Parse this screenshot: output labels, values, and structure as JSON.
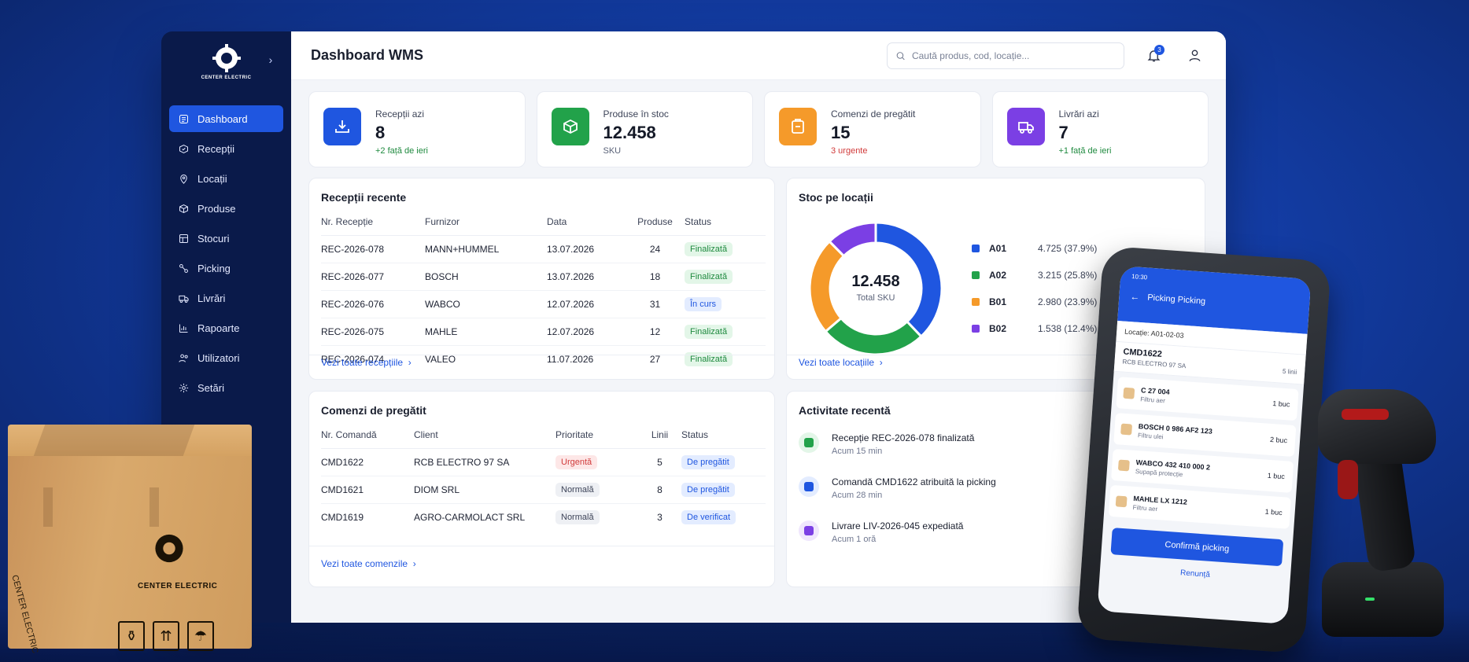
{
  "app": {
    "logo_text": "CENTER ELECTRIC",
    "title": "Dashboard WMS",
    "search_placeholder": "Caută produs, cod, locație...",
    "notifications_count": "3"
  },
  "sidebar": {
    "items": [
      {
        "label": "Dashboard",
        "icon": "dashboard-icon",
        "active": true
      },
      {
        "label": "Recepții",
        "icon": "reception-icon"
      },
      {
        "label": "Locații",
        "icon": "location-icon"
      },
      {
        "label": "Produse",
        "icon": "box-icon"
      },
      {
        "label": "Stocuri",
        "icon": "stock-icon"
      },
      {
        "label": "Picking",
        "icon": "picking-icon"
      },
      {
        "label": "Livrări",
        "icon": "truck-icon"
      },
      {
        "label": "Rapoarte",
        "icon": "chart-icon"
      },
      {
        "label": "Utilizatori",
        "icon": "users-icon"
      },
      {
        "label": "Setări",
        "icon": "gear-icon"
      }
    ]
  },
  "kpis": [
    {
      "label": "Recepții azi",
      "value": "8",
      "sub": "+2 față de ieri",
      "color": "#1f56e0",
      "sub_color": "#1f8a3f"
    },
    {
      "label": "Produse în stoc",
      "value": "12.458",
      "sub": "SKU",
      "color": "#22a24a",
      "sub_color": "#5a6278"
    },
    {
      "label": "Comenzi de pregătit",
      "value": "15",
      "sub": "3 urgente",
      "color": "#f59a2a",
      "sub_color": "#d13b3b"
    },
    {
      "label": "Livrări azi",
      "value": "7",
      "sub": "+1 față de ieri",
      "color": "#7b3fe4",
      "sub_color": "#1f8a3f"
    }
  ],
  "receptions": {
    "title": "Recepții recente",
    "columns": [
      "Nr. Recepție",
      "Furnizor",
      "Data",
      "Produse",
      "Status"
    ],
    "rows": [
      [
        "REC-2026-078",
        "MANN+HUMMEL",
        "13.07.2026",
        "24",
        "Finalizată"
      ],
      [
        "REC-2026-077",
        "BOSCH",
        "13.07.2026",
        "18",
        "Finalizată"
      ],
      [
        "REC-2026-076",
        "WABCO",
        "12.07.2026",
        "31",
        "În curs"
      ],
      [
        "REC-2026-075",
        "MAHLE",
        "12.07.2026",
        "12",
        "Finalizată"
      ],
      [
        "REC-2026-074",
        "VALEO",
        "11.07.2026",
        "27",
        "Finalizată"
      ]
    ],
    "link": "Vezi toate recepțiile"
  },
  "stock": {
    "title": "Stoc pe locații",
    "total": "12.458",
    "total_label": "Total SKU",
    "link": "Vezi toate locațiile"
  },
  "chart_data": {
    "type": "pie",
    "categories": [
      "A01",
      "A02",
      "B01",
      "B02"
    ],
    "values": [
      4725,
      3215,
      2980,
      1538
    ],
    "labels": [
      "4.725 (37.9%)",
      "3.215 (25.8%)",
      "2.980 (23.9%)",
      "1.538 (12.4%)"
    ],
    "colors": [
      "#1f56e0",
      "#22a24a",
      "#f59a2a",
      "#7b3fe4"
    ]
  },
  "orders": {
    "title": "Comenzi de pregătit",
    "columns": [
      "Nr. Comandă",
      "Client",
      "Prioritate",
      "Linii",
      "Status"
    ],
    "rows": [
      [
        "CMD1622",
        "RCB ELECTRO 97 SA",
        "Urgentă",
        "5",
        "De pregătit"
      ],
      [
        "CMD1621",
        "DIOM SRL",
        "Normală",
        "8",
        "De pregătit"
      ],
      [
        "CMD1619",
        "AGRO-CARMOLACT SRL",
        "Normală",
        "3",
        "De verificat"
      ]
    ],
    "link": "Vezi toate comenzile"
  },
  "activity": {
    "title": "Activitate recentă",
    "items": [
      {
        "title": "Recepție REC-2026-078 finalizată",
        "time": "Acum 15 min",
        "color": "#22a24a",
        "bg": "#e3f6e8"
      },
      {
        "title": "Comandă CMD1622 atribuită la picking",
        "time": "Acum 28 min",
        "color": "#1f56e0",
        "bg": "#e3ecff"
      },
      {
        "title": "Livrare LIV-2026-045 expediată",
        "time": "Acum 1 oră",
        "color": "#7b3fe4",
        "bg": "#efe6fd"
      }
    ]
  },
  "phone": {
    "time": "10:30",
    "title": "Picking Picking",
    "location": "Locație: A01-02-03",
    "order_id": "CMD1622",
    "order_client": "RCB ELECTRO 97 SA",
    "order_lines": "5 linii",
    "items": [
      {
        "code": "C 27 004",
        "desc": "Filtru aer",
        "qty": "1 buc"
      },
      {
        "code": "BOSCH 0 986 AF2 123",
        "desc": "Filtru ulei",
        "qty": "2 buc"
      },
      {
        "code": "WABCO 432 410 000 2",
        "desc": "Supapă protecție",
        "qty": "1 buc"
      },
      {
        "code": "MAHLE LX 1212",
        "desc": "Filtru aer",
        "qty": "1 buc"
      }
    ],
    "confirm": "Confirmă picking",
    "cancel": "Renunță"
  },
  "box": {
    "brand": "CENTER ELECTRIC",
    "side_text": "CENTER ELECTRIC"
  }
}
